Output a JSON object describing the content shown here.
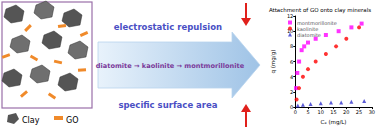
{
  "diagram": {
    "left_panel": {
      "labels": [
        "Clay",
        "GO"
      ]
    },
    "arrow": {
      "top": "electrostatic repulsion",
      "middle": "diatomite → kaolinite → montmorillonite",
      "bottom": "specific surface area"
    }
  },
  "chart_data": {
    "type": "scatter",
    "title": "Attachment of GO onto clay minerals",
    "x_label": "Cₑ (mg/L)",
    "y_label": "q (mg/g)",
    "xlim": [
      0,
      30
    ],
    "xticks": [
      0,
      5,
      10,
      15,
      20,
      25,
      30
    ],
    "ylim": [
      0,
      12
    ],
    "yticks": [
      0,
      2,
      4,
      6,
      8,
      10,
      12
    ],
    "legend": "upper left",
    "series": [
      {
        "name": "montmorillonite",
        "color": "#ff00ff",
        "marker": "square",
        "x": [
          0.3,
          0.8,
          1.5,
          2.5,
          3.5,
          5,
          8,
          12,
          17,
          22,
          26
        ],
        "values": [
          2.5,
          4.5,
          6,
          7.5,
          8,
          8.5,
          9,
          9.5,
          10,
          10.5,
          11
        ]
      },
      {
        "name": "kaolinite",
        "color": "#ff0000",
        "marker": "circle",
        "x": [
          0.5,
          1.5,
          3,
          5,
          8,
          12,
          16,
          20,
          25
        ],
        "values": [
          1,
          2.5,
          4,
          5,
          6,
          7,
          8,
          9,
          10.5
        ]
      },
      {
        "name": "diatomite",
        "color": "#3333cc",
        "marker": "triangle",
        "x": [
          1,
          3,
          6,
          10,
          14,
          18,
          22,
          27
        ],
        "values": [
          0.2,
          0.3,
          0.4,
          0.5,
          0.6,
          0.6,
          0.7,
          0.8
        ]
      }
    ]
  }
}
